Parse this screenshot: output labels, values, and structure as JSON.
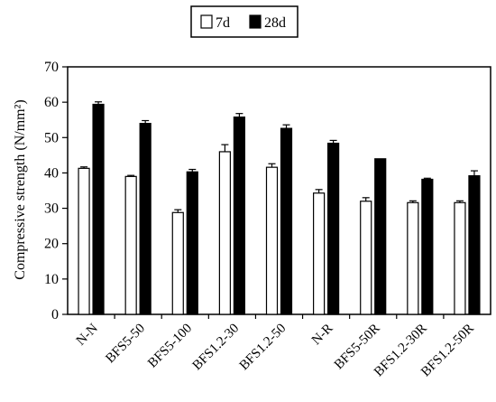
{
  "chart_data": {
    "type": "bar",
    "ylabel": "Compressive strength (N/mm²)",
    "xlabel": "",
    "ylim": [
      0,
      70
    ],
    "yticks": [
      0,
      10,
      20,
      30,
      40,
      50,
      60,
      70
    ],
    "categories": [
      "N-N",
      "BFS5-50",
      "BFS5-100",
      "BFS1.2-30",
      "BFS1.2-50",
      "N-R",
      "BFS5-50R",
      "BFS1.2-30R",
      "BFS1.2-50R"
    ],
    "legend_position": "top-center",
    "series": [
      {
        "name": "7d",
        "color": "#ffffff",
        "values": [
          41.3,
          39.0,
          28.8,
          46.0,
          41.6,
          34.3,
          32.0,
          31.6,
          31.6
        ],
        "errors": [
          0.4,
          0.3,
          0.8,
          2.0,
          1.0,
          1.0,
          1.0,
          0.5,
          0.5
        ]
      },
      {
        "name": "28d",
        "color": "#000000",
        "values": [
          59.4,
          54.0,
          40.3,
          55.8,
          52.6,
          48.4,
          44.0,
          38.2,
          39.2
        ],
        "errors": [
          0.7,
          0.8,
          0.7,
          1.0,
          1.0,
          0.8,
          0.0,
          0.3,
          1.4
        ]
      }
    ]
  }
}
